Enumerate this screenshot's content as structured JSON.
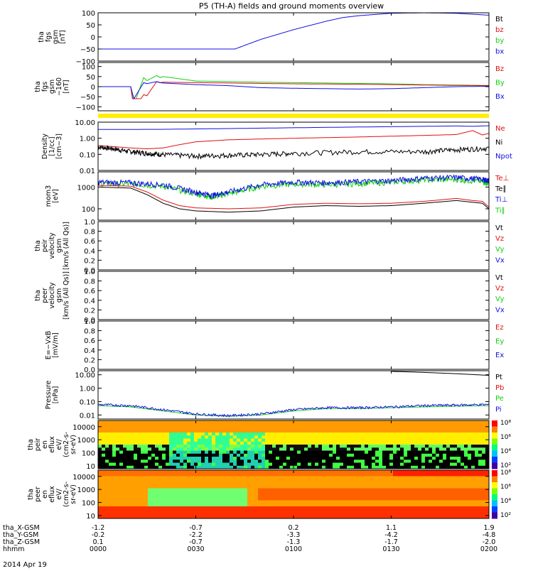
{
  "title": "P5 (TH-A) fields and ground moments overview",
  "date": "2014 Apr 19",
  "colors": {
    "black": "#000000",
    "red": "#e01010",
    "green": "#10d010",
    "blue": "#1010e0",
    "yellow": "#ffee00"
  },
  "chart_data": [
    {
      "type": "line",
      "id": "fgs",
      "ylabel": [
        "tha",
        "fgs",
        "gsm",
        "[nT]"
      ],
      "ylim": [
        -100,
        100
      ],
      "ticks": [
        {
          "v": 100,
          "t": "100"
        },
        {
          "v": 50,
          "t": "50"
        },
        {
          "v": 0,
          "t": "0"
        },
        {
          "v": -50,
          "t": "−50"
        },
        {
          "v": -100,
          "t": "−100"
        }
      ],
      "legend": [
        {
          "t": "Bt",
          "c": "black"
        },
        {
          "t": "bz",
          "c": "red"
        },
        {
          "t": "by",
          "c": "green"
        },
        {
          "t": "bx",
          "c": "blue"
        }
      ],
      "series": [
        {
          "c": "blue",
          "x": [
            0,
            35,
            40,
            50,
            60,
            70,
            75,
            80,
            90,
            100,
            110,
            120
          ],
          "y": [
            -120,
            -100,
            -60,
            -10,
            30,
            65,
            80,
            88,
            98,
            100,
            98,
            90
          ]
        }
      ]
    },
    {
      "type": "line",
      "id": "fgs2",
      "ylabel": [
        "tha",
        "fgs",
        "gsm",
        "−160",
        "[nT]"
      ],
      "ylim": [
        -120,
        120
      ],
      "ticks": [
        {
          "v": 100,
          "t": "100"
        },
        {
          "v": 50,
          "t": "50"
        },
        {
          "v": 0,
          "t": "0"
        },
        {
          "v": -50,
          "t": "−50"
        },
        {
          "v": -100,
          "t": "−100"
        }
      ],
      "legend": [
        {
          "t": "Bz",
          "c": "red"
        },
        {
          "t": "By",
          "c": "green"
        },
        {
          "t": "Bx",
          "c": "blue"
        }
      ],
      "yellowbar": true,
      "series": [
        {
          "c": "green",
          "x": [
            0,
            10,
            11,
            14,
            15,
            18,
            19,
            20,
            30,
            40,
            50,
            60,
            70,
            80,
            90,
            100,
            110,
            120
          ],
          "y": [
            0,
            0,
            -90,
            45,
            30,
            55,
            45,
            50,
            28,
            25,
            22,
            20,
            18,
            16,
            14,
            10,
            8,
            6
          ]
        },
        {
          "c": "red",
          "x": [
            0,
            10,
            11,
            14,
            15,
            18,
            19,
            20,
            30,
            40,
            50,
            60,
            70,
            80,
            90,
            100,
            110,
            120
          ],
          "y": [
            0,
            0,
            -110,
            -40,
            -45,
            25,
            20,
            22,
            20,
            18,
            16,
            14,
            13,
            12,
            10,
            8,
            6,
            5
          ]
        },
        {
          "c": "blue",
          "x": [
            0,
            10,
            11,
            14,
            15,
            18,
            19,
            20,
            30,
            40,
            50,
            60,
            70,
            80,
            90,
            100,
            110,
            120
          ],
          "y": [
            0,
            0,
            -60,
            20,
            15,
            25,
            20,
            18,
            10,
            5,
            -5,
            -8,
            -10,
            -12,
            -10,
            -5,
            0,
            2
          ]
        }
      ]
    },
    {
      "type": "line",
      "id": "density",
      "log": true,
      "ylabel": [
        "Density",
        "[1/cc]",
        "[cm−3]"
      ],
      "ylim": [
        0.01,
        10
      ],
      "ticks": [
        {
          "v": 10,
          "t": "10.00"
        },
        {
          "v": 1,
          "t": "1.00"
        },
        {
          "v": 0.1,
          "t": "0.10"
        },
        {
          "v": 0.01,
          "t": "0.01"
        }
      ],
      "legend": [
        {
          "t": "Ne",
          "c": "red"
        },
        {
          "t": "Ni",
          "c": "black"
        },
        {
          "t": "Npot",
          "c": "blue"
        }
      ],
      "series": [
        {
          "c": "blue",
          "x": [
            0,
            20,
            40,
            60,
            80,
            100,
            110,
            115,
            120
          ],
          "y": [
            3.5,
            3.6,
            4,
            4.5,
            5,
            5.5,
            5.8,
            5.5,
            6
          ]
        },
        {
          "c": "red",
          "x": [
            0,
            5,
            10,
            15,
            20,
            25,
            30,
            40,
            50,
            60,
            80,
            100,
            110,
            115,
            118,
            120
          ],
          "y": [
            0.35,
            0.3,
            0.25,
            0.22,
            0.25,
            0.4,
            0.6,
            0.8,
            0.9,
            1.0,
            1.2,
            1.5,
            1.7,
            3,
            1.6,
            2
          ]
        },
        {
          "c": "black",
          "noise": 0.35,
          "x": [
            0,
            5,
            10,
            15,
            20,
            30,
            40,
            50,
            60,
            80,
            100,
            110,
            120
          ],
          "y": [
            0.3,
            0.22,
            0.15,
            0.12,
            0.1,
            0.08,
            0.09,
            0.1,
            0.12,
            0.15,
            0.15,
            0.2,
            0.25
          ]
        }
      ]
    },
    {
      "type": "line",
      "id": "temp",
      "log": true,
      "ylabel": [
        "mom3",
        "[eV]"
      ],
      "ylim": [
        30,
        5000
      ],
      "ticks": [
        {
          "v": 1000,
          "t": "1000"
        },
        {
          "v": 100,
          "t": "100"
        }
      ],
      "legend": [
        {
          "t": "Te⊥",
          "c": "red"
        },
        {
          "t": "Te∥",
          "c": "black"
        },
        {
          "t": "Ti⊥",
          "c": "blue"
        },
        {
          "t": "Ti∥",
          "c": "green"
        }
      ],
      "series": [
        {
          "c": "green",
          "noise": 0.3,
          "x": [
            0,
            10,
            20,
            30,
            35,
            40,
            50,
            60,
            70,
            80,
            90,
            100,
            110,
            118,
            120
          ],
          "y": [
            1500,
            1400,
            1100,
            500,
            350,
            500,
            1100,
            1400,
            1300,
            1500,
            1700,
            2200,
            2300,
            1800,
            1500
          ]
        },
        {
          "c": "blue",
          "noise": 0.3,
          "x": [
            0,
            10,
            20,
            30,
            35,
            40,
            50,
            60,
            70,
            80,
            90,
            100,
            110,
            118,
            120
          ],
          "y": [
            1700,
            1600,
            1300,
            600,
            420,
            600,
            1300,
            1700,
            1600,
            1800,
            2000,
            2600,
            2800,
            2300,
            2000
          ]
        },
        {
          "c": "red",
          "x": [
            0,
            10,
            15,
            20,
            25,
            30,
            40,
            50,
            60,
            70,
            80,
            90,
            100,
            110,
            115,
            118,
            120
          ],
          "y": [
            1200,
            1100,
            600,
            250,
            140,
            110,
            100,
            110,
            160,
            180,
            170,
            180,
            220,
            300,
            240,
            220,
            120
          ]
        },
        {
          "c": "black",
          "x": [
            0,
            10,
            15,
            20,
            25,
            30,
            40,
            50,
            60,
            70,
            80,
            90,
            100,
            110,
            115,
            118,
            120
          ],
          "y": [
            1000,
            900,
            450,
            180,
            100,
            80,
            70,
            80,
            120,
            140,
            130,
            140,
            180,
            240,
            200,
            180,
            100
          ]
        }
      ]
    },
    {
      "type": "line",
      "id": "vpeir",
      "ylabel": [
        "tha",
        "peir",
        "velocity",
        "gsm",
        "[km/s (All Qs)]"
      ],
      "ylim": [
        0,
        1
      ],
      "ticks": [
        {
          "v": 1,
          "t": "1.0"
        },
        {
          "v": 0.8,
          "t": "0.8"
        },
        {
          "v": 0.6,
          "t": "0.6"
        },
        {
          "v": 0.4,
          "t": "0.4"
        },
        {
          "v": 0.2,
          "t": "0.2"
        },
        {
          "v": 0,
          "t": "0.0"
        }
      ],
      "legend": [
        {
          "t": "Vt",
          "c": "black"
        },
        {
          "t": "Vz",
          "c": "red"
        },
        {
          "t": "Vy",
          "c": "green"
        },
        {
          "t": "Vx",
          "c": "blue"
        }
      ],
      "series": []
    },
    {
      "type": "line",
      "id": "vpeer",
      "ylabel": [
        "tha",
        "peer",
        "velocity",
        "gsm",
        "[km/s (All Qs)]"
      ],
      "ylim": [
        0,
        1
      ],
      "ticks": [
        {
          "v": 1,
          "t": "1.0"
        },
        {
          "v": 0.8,
          "t": "0.8"
        },
        {
          "v": 0.6,
          "t": "0.6"
        },
        {
          "v": 0.4,
          "t": "0.4"
        },
        {
          "v": 0.2,
          "t": "0.2"
        },
        {
          "v": 0,
          "t": "0.0"
        }
      ],
      "legend": [
        {
          "t": "Vt",
          "c": "black"
        },
        {
          "t": "Vz",
          "c": "red"
        },
        {
          "t": "Vy",
          "c": "green"
        },
        {
          "t": "Vx",
          "c": "blue"
        }
      ],
      "series": []
    },
    {
      "type": "line",
      "id": "efield",
      "ylabel": [
        "E=−VxB",
        "[mV/m]"
      ],
      "ylim": [
        0,
        1
      ],
      "ticks": [
        {
          "v": 1,
          "t": "1.0"
        },
        {
          "v": 0.8,
          "t": "0.8"
        },
        {
          "v": 0.6,
          "t": "0.6"
        },
        {
          "v": 0.4,
          "t": "0.4"
        },
        {
          "v": 0.2,
          "t": "0.2"
        },
        {
          "v": 0,
          "t": "0.0"
        }
      ],
      "legend": [
        {
          "t": "Ez",
          "c": "red"
        },
        {
          "t": "Ey",
          "c": "green"
        },
        {
          "t": "Ex",
          "c": "blue"
        }
      ],
      "series": []
    },
    {
      "type": "line",
      "id": "pressure",
      "log": true,
      "ylabel": [
        "Pressure",
        "[nPa]"
      ],
      "ylim": [
        0.005,
        20
      ],
      "ticks": [
        {
          "v": 10,
          "t": "10.00"
        },
        {
          "v": 1,
          "t": "1.00"
        },
        {
          "v": 0.1,
          "t": "0.10"
        },
        {
          "v": 0.01,
          "t": "0.01"
        }
      ],
      "legend": [
        {
          "t": "Pt",
          "c": "black"
        },
        {
          "t": "Pb",
          "c": "red"
        },
        {
          "t": "Pe",
          "c": "green"
        },
        {
          "t": "Pi",
          "c": "blue"
        }
      ],
      "series": [
        {
          "c": "black",
          "x": [
            90,
            100,
            110,
            120
          ],
          "y": [
            18,
            15,
            12,
            9
          ]
        },
        {
          "c": "green",
          "x": [
            0,
            10,
            20,
            30,
            40,
            50,
            60,
            70,
            80,
            90,
            100,
            110,
            120
          ],
          "y": [
            0.05,
            0.04,
            0.02,
            0.01,
            0.008,
            0.01,
            0.02,
            0.03,
            0.03,
            0.035,
            0.04,
            0.045,
            0.05
          ]
        },
        {
          "c": "blue",
          "noise": 0.2,
          "x": [
            0,
            10,
            20,
            30,
            40,
            50,
            60,
            70,
            80,
            90,
            100,
            110,
            120
          ],
          "y": [
            0.06,
            0.05,
            0.025,
            0.012,
            0.009,
            0.012,
            0.025,
            0.035,
            0.035,
            0.04,
            0.05,
            0.055,
            0.06
          ]
        }
      ]
    },
    {
      "type": "heatmap",
      "id": "peir_flux",
      "log": true,
      "ylabel": [
        "tha",
        "peir",
        "en",
        "eflux",
        "eV/",
        "(cm2-s-",
        "sr-eV)"
      ],
      "ylim": [
        6,
        30000
      ],
      "ticks": [
        {
          "v": 10000,
          "t": "10000"
        },
        {
          "v": 1000,
          "t": "1000"
        },
        {
          "v": 100,
          "t": "100"
        },
        {
          "v": 10,
          "t": "10"
        }
      ],
      "cbar": [
        "10⁸",
        "10⁶",
        "10⁴",
        "10²"
      ]
    },
    {
      "type": "heatmap",
      "id": "peer_flux",
      "log": true,
      "ylabel": [
        "tha",
        "peer",
        "en",
        "eflux",
        "eV/",
        "(cm2-s-",
        "sr-eV)"
      ],
      "ylim": [
        6,
        30000
      ],
      "ticks": [
        {
          "v": 10000,
          "t": "10000"
        },
        {
          "v": 1000,
          "t": "1000"
        },
        {
          "v": 100,
          "t": "100"
        },
        {
          "v": 10,
          "t": "10"
        }
      ],
      "cbar": [
        "10⁸",
        "10⁶",
        "10⁴",
        "10²"
      ]
    }
  ],
  "xaxis": {
    "xlim": [
      0,
      120
    ],
    "rows": [
      {
        "label": "tha_X-GSM",
        "vals": [
          "-1.2",
          "-0.7",
          "0.2",
          "1.1",
          "1.9"
        ]
      },
      {
        "label": "tha_Y-GSM",
        "vals": [
          "-0.2",
          "-2.2",
          "-3.3",
          "-4.2",
          "-4.8"
        ]
      },
      {
        "label": "tha_Z-GSM",
        "vals": [
          "0.1",
          "-0.7",
          "-1.3",
          "-1.7",
          "-2.0"
        ]
      },
      {
        "label": "hhmm",
        "vals": [
          "0000",
          "0030",
          "0100",
          "0130",
          "0200"
        ]
      }
    ]
  }
}
